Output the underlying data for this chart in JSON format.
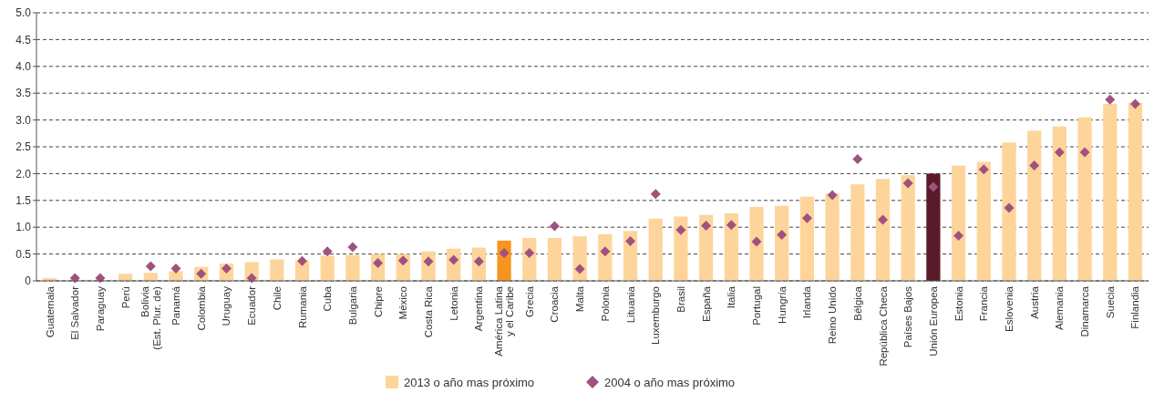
{
  "chart_data": {
    "type": "bar",
    "categories": [
      "Guatemala",
      "El Salvador",
      "Paraguay",
      "Perú",
      "Bolivia\n(Est. Plur. de)",
      "Panamá",
      "Colombia",
      "Uruguay",
      "Ecuador",
      "Chile",
      "Rumania",
      "Cuba",
      "Bulgaria",
      "Chipre",
      "México",
      "Costa Rica",
      "Letonia",
      "Argentina",
      "América Latina\ny el Caribe",
      "Grecia",
      "Croacia",
      "Malta",
      "Polonia",
      "Lituania",
      "Luxemburgo",
      "Brasil",
      "España",
      "Italia",
      "Portugal",
      "Hungría",
      "Irlanda",
      "Reino Unido",
      "Bélgica",
      "República Checa",
      "Países Bajos",
      "Unión Europea",
      "Estonia",
      "Francia",
      "Eslovenia",
      "Austria",
      "Alemania",
      "Dinamarca",
      "Suecia",
      "Finlandia"
    ],
    "series": [
      {
        "name": "2013 o año mas próximo",
        "color": "#fdd59b",
        "colors": [
          "#fdd59b",
          null,
          null,
          "#fdd59b",
          "#fdd59b",
          "#fdd59b",
          "#fdd59b",
          "#fdd59b",
          "#fdd59b",
          "#fdd59b",
          "#fdd59b",
          "#fdd59b",
          "#fdd59b",
          "#fdd59b",
          "#fdd59b",
          "#fdd59b",
          "#fdd59b",
          "#fdd59b",
          "#f7941d",
          "#fdd59b",
          "#fdd59b",
          "#fdd59b",
          "#fdd59b",
          "#fdd59b",
          "#fdd59b",
          "#fdd59b",
          "#fdd59b",
          "#fdd59b",
          "#fdd59b",
          "#fdd59b",
          "#fdd59b",
          "#fdd59b",
          "#fdd59b",
          "#fdd59b",
          "#fdd59b",
          "#5a1a2a",
          "#fdd59b",
          "#fdd59b",
          "#fdd59b",
          "#fdd59b",
          "#fdd59b",
          "#fdd59b",
          "#fdd59b",
          "#fdd59b"
        ],
        "values": [
          0.05,
          null,
          null,
          0.13,
          0.15,
          0.18,
          0.26,
          0.32,
          0.35,
          0.4,
          0.38,
          0.47,
          0.48,
          0.5,
          0.5,
          0.55,
          0.6,
          0.62,
          0.75,
          0.8,
          0.8,
          0.83,
          0.87,
          0.93,
          1.16,
          1.2,
          1.23,
          1.26,
          1.38,
          1.4,
          1.57,
          1.63,
          1.8,
          1.9,
          1.97,
          2.0,
          2.15,
          2.22,
          2.58,
          2.8,
          2.88,
          3.05,
          3.3,
          3.32
        ]
      },
      {
        "name": "2004 o año mas próximo",
        "type": "scatter",
        "color": "#a0527e",
        "marker": "diamond",
        "x": [
          "Guatemala",
          "El Salvador",
          "Paraguay",
          "Perú",
          "Bolivia\n(Est. Plur. de)",
          "Panamá",
          "Colombia",
          "Uruguay",
          "Ecuador",
          "Chile",
          "Rumania",
          "Cuba",
          "Bulgaria",
          "Chipre",
          "México",
          "Costa Rica",
          "Letonia",
          "Argentina",
          "América Latina\ny el Caribe",
          "Grecia",
          "Croacia",
          "Malta",
          "Polonia",
          "Lituania",
          "Luxemburgo",
          "Brasil",
          "España",
          "Italia",
          "Portugal",
          "Hungría",
          "Irlanda",
          "Reino Unido",
          "Bélgica",
          "República Checa",
          "Países Bajos",
          "Unión Europea",
          "Estonia",
          "Francia",
          "Eslovenia",
          "Austria",
          "Alemania",
          "Dinamarca",
          "Suecia",
          "Finlandia"
        ],
        "values": [
          null,
          0.05,
          0.05,
          null,
          0.27,
          0.23,
          0.13,
          0.23,
          0.05,
          null,
          0.37,
          0.55,
          0.63,
          0.33,
          0.38,
          0.36,
          0.39,
          0.36,
          0.52,
          0.52,
          1.02,
          0.22,
          0.55,
          0.74,
          1.62,
          0.95,
          1.03,
          1.04,
          0.73,
          0.86,
          1.17,
          1.6,
          2.27,
          1.14,
          1.82,
          1.75,
          0.84,
          2.08,
          1.36,
          2.15,
          2.4,
          2.4,
          3.38,
          3.3
        ]
      }
    ],
    "ylim": [
      0,
      5
    ],
    "yticks": [
      0,
      {
        "value": 0.5,
        "label": "0.5"
      },
      {
        "value": 1,
        "label": "1.0"
      },
      {
        "value": 1.5,
        "label": "1.5"
      },
      {
        "value": 2,
        "label": "2.0"
      },
      {
        "value": 2.5,
        "label": "2.5"
      },
      {
        "value": 3,
        "label": "3.0"
      },
      {
        "value": 3.5,
        "label": "3.5"
      },
      {
        "value": 4,
        "label": "4.0"
      },
      {
        "value": 4.5,
        "label": "4.5"
      },
      {
        "value": 5,
        "label": "5.0"
      }
    ],
    "grid": "y",
    "legend": "bottom"
  }
}
